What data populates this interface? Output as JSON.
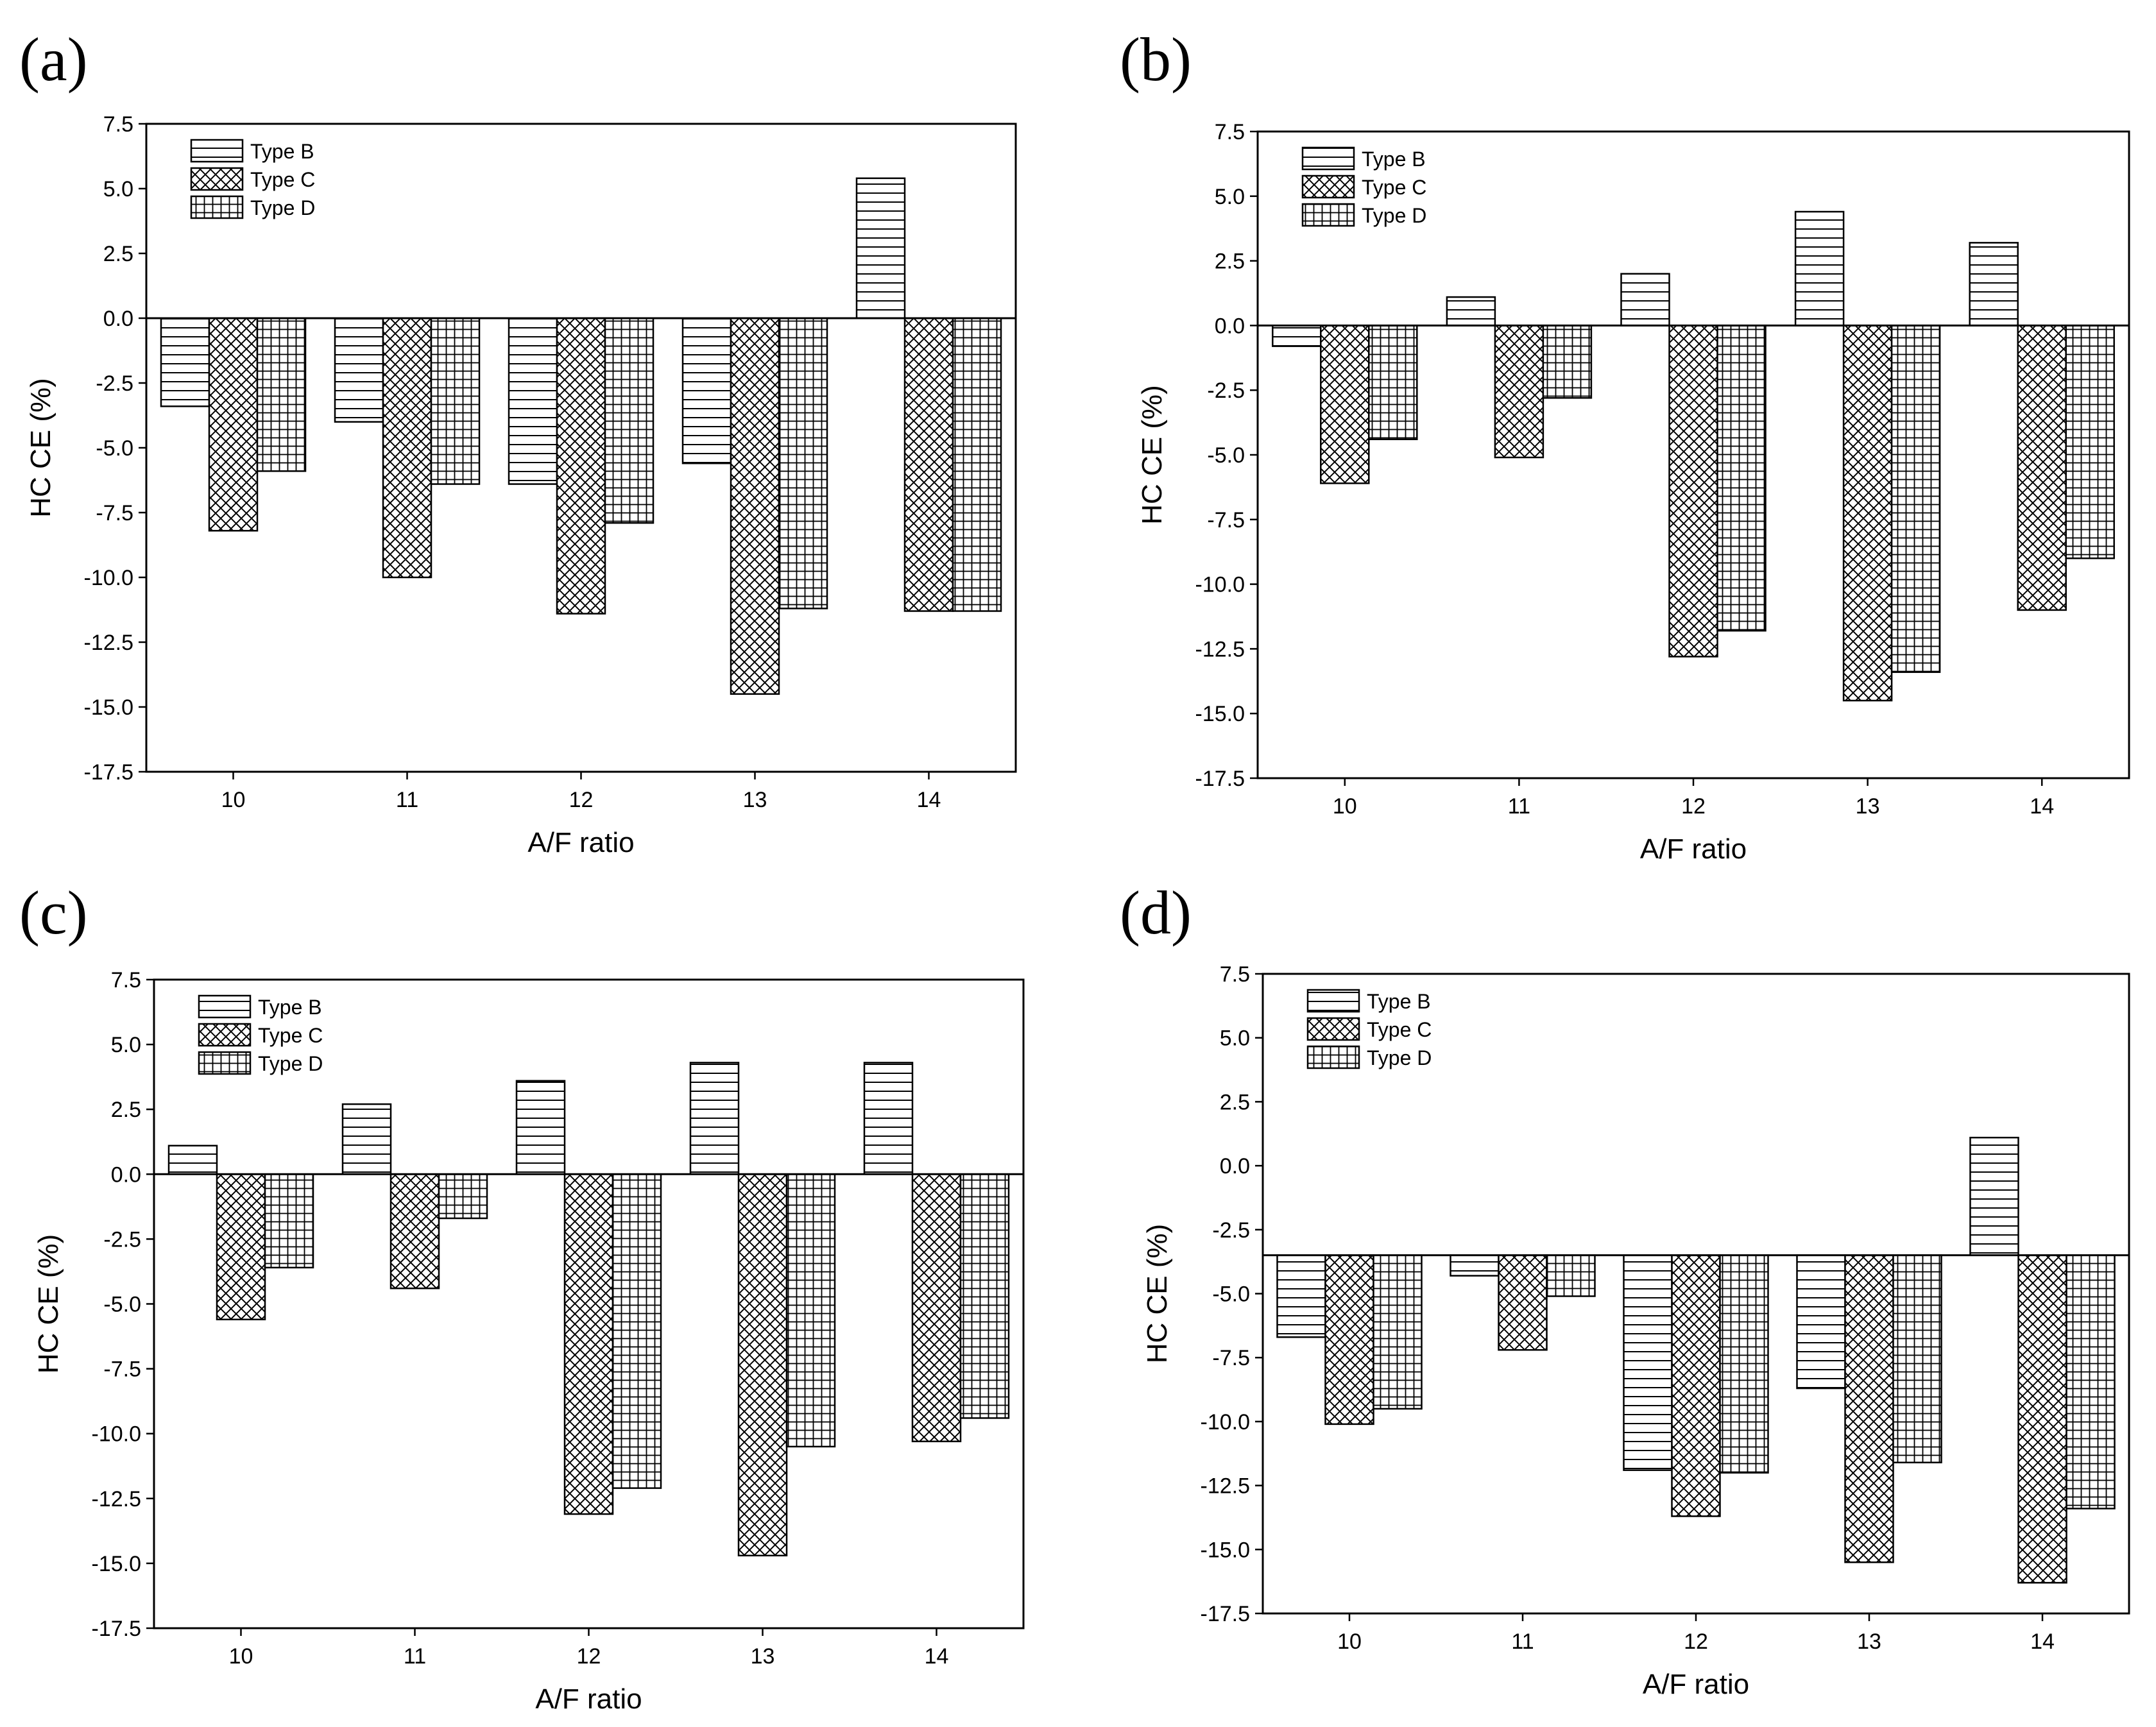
{
  "chart_data": [
    {
      "type": "bar",
      "panel_label": "(a)",
      "categories": [
        "10",
        "11",
        "12",
        "13",
        "14"
      ],
      "series": [
        {
          "name": "Type B",
          "pattern": "horizontal-lines",
          "values": [
            -3.4,
            -4.0,
            -6.4,
            -5.6,
            5.4
          ]
        },
        {
          "name": "Type C",
          "pattern": "cross-hatch",
          "values": [
            -8.2,
            -10.0,
            -11.4,
            -14.5,
            -11.3
          ]
        },
        {
          "name": "Type D",
          "pattern": "grid",
          "values": [
            -5.9,
            -6.4,
            -7.9,
            -11.2,
            -11.3
          ]
        }
      ],
      "baseline": 0,
      "xlabel": "A/F ratio",
      "ylabel": "HC CE (%)",
      "ylim": [
        -17.5,
        7.5
      ],
      "yticks": [
        "7.5",
        "5.0",
        "2.5",
        "0.0",
        "-2.5",
        "-5.0",
        "-7.5",
        "-10.0",
        "-12.5",
        "-15.0",
        "-17.5"
      ],
      "legend_position": "top-left",
      "grid": false
    },
    {
      "type": "bar",
      "panel_label": "(b)",
      "categories": [
        "10",
        "11",
        "12",
        "13",
        "14"
      ],
      "series": [
        {
          "name": "Type B",
          "pattern": "horizontal-lines",
          "values": [
            -0.8,
            1.1,
            2.0,
            4.4,
            3.2
          ]
        },
        {
          "name": "Type C",
          "pattern": "cross-hatch",
          "values": [
            -6.1,
            -5.1,
            -12.8,
            -14.5,
            -11.0
          ]
        },
        {
          "name": "Type D",
          "pattern": "grid",
          "values": [
            -4.4,
            -2.8,
            -11.8,
            -13.4,
            -9.0
          ]
        }
      ],
      "baseline": 0,
      "xlabel": "A/F ratio",
      "ylabel": "HC CE (%)",
      "ylim": [
        -17.5,
        7.5
      ],
      "yticks": [
        "7.5",
        "5.0",
        "2.5",
        "0.0",
        "-2.5",
        "-5.0",
        "-7.5",
        "-10.0",
        "-12.5",
        "-15.0",
        "-17.5"
      ],
      "legend_position": "top-left",
      "grid": false
    },
    {
      "type": "bar",
      "panel_label": "(c)",
      "categories": [
        "10",
        "11",
        "12",
        "13",
        "14"
      ],
      "series": [
        {
          "name": "Type B",
          "pattern": "horizontal-lines",
          "values": [
            1.1,
            2.7,
            3.6,
            4.3,
            4.3
          ]
        },
        {
          "name": "Type C",
          "pattern": "cross-hatch",
          "values": [
            -5.6,
            -4.4,
            -13.1,
            -14.7,
            -10.3
          ]
        },
        {
          "name": "Type D",
          "pattern": "grid",
          "values": [
            -3.6,
            -1.7,
            -12.1,
            -10.5,
            -9.4
          ]
        }
      ],
      "baseline": 0,
      "xlabel": "A/F ratio",
      "ylabel": "HC CE (%)",
      "ylim": [
        -17.5,
        7.5
      ],
      "yticks": [
        "7.5",
        "5.0",
        "2.5",
        "0.0",
        "-2.5",
        "-5.0",
        "-7.5",
        "-10.0",
        "-12.5",
        "-15.0",
        "-17.5"
      ],
      "legend_position": "top-left",
      "grid": false
    },
    {
      "type": "bar",
      "panel_label": "(d)",
      "categories": [
        "10",
        "11",
        "12",
        "13",
        "14"
      ],
      "series": [
        {
          "name": "Type B",
          "pattern": "horizontal-lines",
          "values": [
            -6.7,
            -4.3,
            -11.9,
            -8.7,
            1.1
          ]
        },
        {
          "name": "Type C",
          "pattern": "cross-hatch",
          "values": [
            -10.1,
            -7.2,
            -13.7,
            -15.5,
            -16.3
          ]
        },
        {
          "name": "Type D",
          "pattern": "grid",
          "values": [
            -9.5,
            -5.1,
            -12.0,
            -11.6,
            -13.4
          ]
        }
      ],
      "baseline": -3.5,
      "xlabel": "A/F ratio",
      "ylabel": "HC CE (%)",
      "ylim": [
        -17.5,
        7.5
      ],
      "yticks": [
        "7.5",
        "5.0",
        "2.5",
        "0.0",
        "-2.5",
        "-5.0",
        "-7.5",
        "-10.0",
        "-12.5",
        "-15.0",
        "-17.5"
      ],
      "legend_position": "top-left",
      "grid": false
    }
  ]
}
